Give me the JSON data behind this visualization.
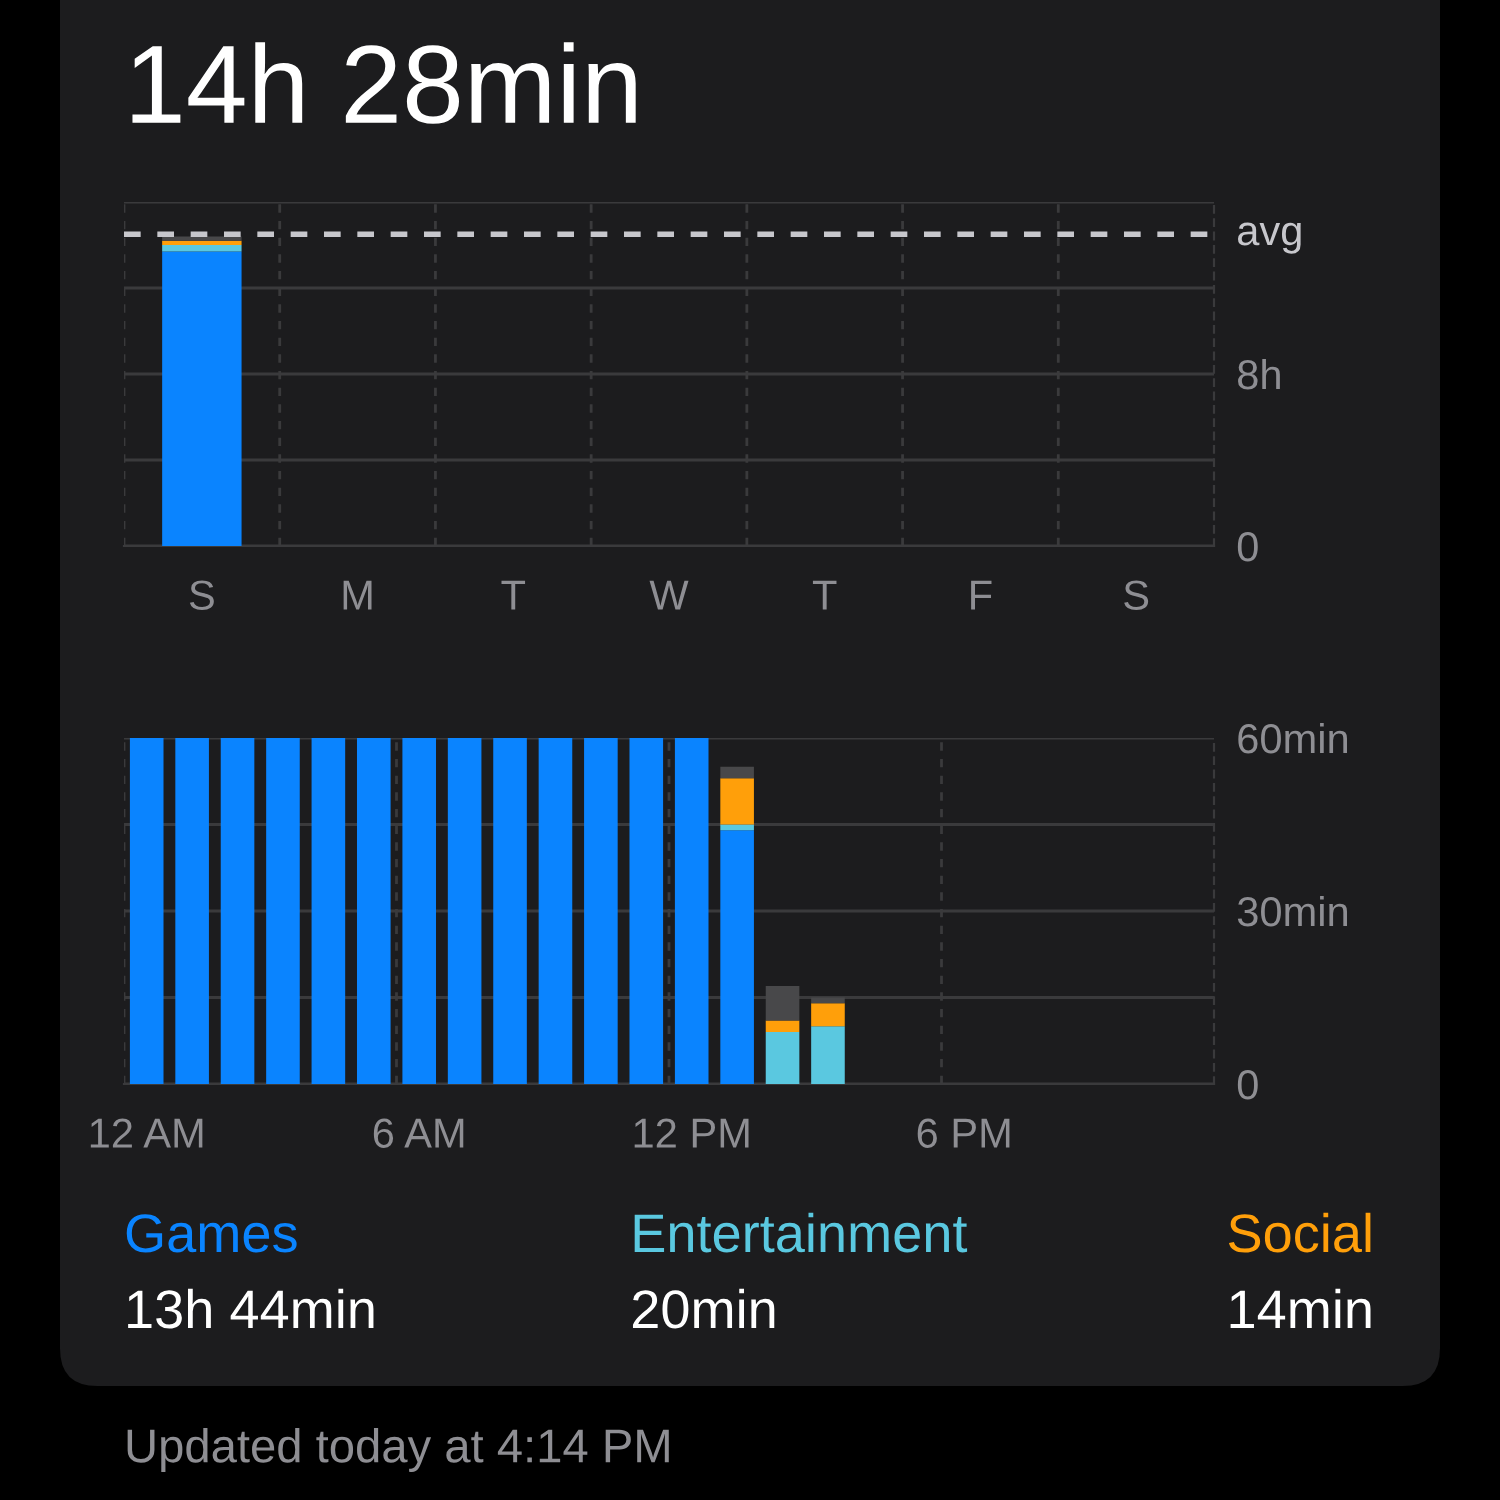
{
  "chart_data": [
    {
      "type": "bar",
      "title": "14h 28min",
      "stacked": true,
      "grid": true,
      "categories": [
        "S",
        "M",
        "T",
        "W",
        "T",
        "F",
        "S"
      ],
      "series": [
        {
          "color": "#0a84ff",
          "values": [
            13.7,
            null,
            null,
            null,
            null,
            null,
            null
          ]
        },
        {
          "color": "#5ac8e0",
          "values": [
            0.3,
            null,
            null,
            null,
            null,
            null,
            null
          ]
        },
        {
          "color": "#ff9f0a",
          "values": [
            0.2,
            null,
            null,
            null,
            null,
            null,
            null
          ]
        },
        {
          "color": "#48484a",
          "values": [
            0.2,
            null,
            null,
            null,
            null,
            null,
            null
          ]
        }
      ],
      "ylim": [
        0,
        16
      ],
      "yticks": [
        0,
        {
          "value": 4,
          "label": null
        },
        {
          "value": 8,
          "label": "8h"
        },
        {
          "value": 12,
          "label": null
        },
        {
          "value": 16,
          "label": null
        }
      ],
      "ref_lines": [
        {
          "axis": "y",
          "value": 14.5,
          "label": "avg",
          "color": "#c7c7cc",
          "line_style": "dashed"
        }
      ]
    },
    {
      "type": "bar",
      "stacked": true,
      "grid": true,
      "legend": "bottom",
      "categories": [
        "12 AM",
        null,
        null,
        null,
        null,
        null,
        "6 AM",
        null,
        null,
        null,
        null,
        null,
        "12 PM",
        null,
        null,
        null,
        null,
        null,
        "6 PM",
        null,
        null,
        null,
        null,
        null
      ],
      "series": [
        {
          "name": "Games",
          "color": "#0a84ff",
          "values": [
            60,
            60,
            60,
            60,
            60,
            60,
            60,
            60,
            60,
            60,
            60,
            60,
            60,
            44,
            null,
            null,
            null,
            null,
            null,
            null,
            null,
            null,
            null,
            null
          ]
        },
        {
          "name": "Entertainment",
          "color": "#5ac8e0",
          "values": [
            null,
            null,
            null,
            null,
            null,
            null,
            null,
            null,
            null,
            null,
            null,
            null,
            null,
            1,
            9,
            10,
            null,
            null,
            null,
            null,
            null,
            null,
            null,
            null
          ]
        },
        {
          "name": "Social",
          "color": "#ff9f0a",
          "values": [
            null,
            null,
            null,
            null,
            null,
            null,
            null,
            null,
            null,
            null,
            null,
            null,
            null,
            8,
            2,
            4,
            null,
            null,
            null,
            null,
            null,
            null,
            null,
            null
          ]
        },
        {
          "color": "#48484a",
          "values": [
            null,
            null,
            null,
            null,
            null,
            null,
            null,
            null,
            null,
            null,
            null,
            null,
            null,
            2,
            6,
            1,
            null,
            null,
            null,
            null,
            null,
            null,
            null,
            null
          ]
        }
      ],
      "ylim": [
        0,
        60
      ],
      "yticks": [
        0,
        {
          "value": 15,
          "label": null
        },
        {
          "value": 30,
          "label": "30min"
        },
        {
          "value": 45,
          "label": null
        },
        {
          "value": 60,
          "label": "60min"
        }
      ],
      "annotations": [
        "13h 44min",
        "20min",
        "14min",
        "Updated today at 4:14 PM"
      ]
    }
  ]
}
